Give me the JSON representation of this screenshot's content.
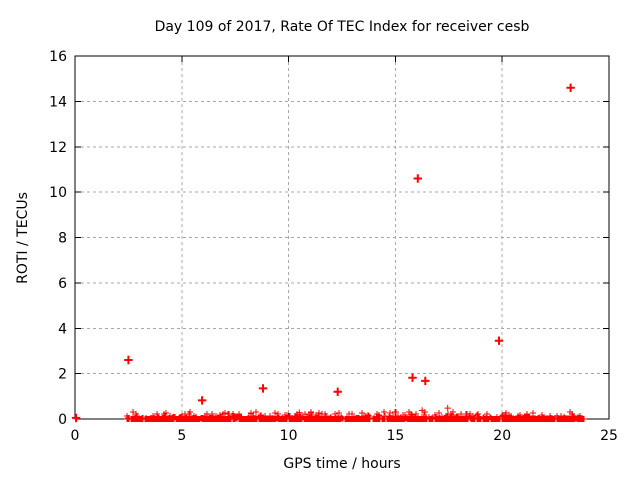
{
  "chart_data": {
    "type": "scatter",
    "title": "Day 109 of 2017, Rate Of TEC Index for receiver cesb",
    "xlabel": "GPS time / hours",
    "ylabel": "ROTI / TECUs",
    "xlim": [
      0,
      25
    ],
    "ylim": [
      0,
      16
    ],
    "xticks": [
      0,
      5,
      10,
      15,
      20,
      25
    ],
    "yticks": [
      0,
      2,
      4,
      6,
      8,
      10,
      12,
      14,
      16
    ],
    "grid": true,
    "legend": "none",
    "marker": "plus",
    "marker_color": "#ff0000",
    "grid_color": "#a8a8a8",
    "axis_color": "#000000",
    "outlier_points": [
      [
        0.05,
        0.05
      ],
      [
        2.5,
        2.6
      ],
      [
        5.95,
        0.82
      ],
      [
        8.8,
        1.35
      ],
      [
        12.3,
        1.2
      ],
      [
        15.8,
        1.82
      ],
      [
        16.05,
        10.6
      ],
      [
        16.4,
        1.68
      ],
      [
        19.85,
        3.45
      ],
      [
        23.2,
        14.6
      ]
    ],
    "minor_points": [
      [
        10.5,
        0.28
      ],
      [
        16.25,
        0.38
      ],
      [
        17.45,
        0.48
      ]
    ],
    "baseline_band": {
      "description": "dense cluster of ROTI values near 0 TECU for all observed epochs",
      "x_start": 2.42,
      "x_end": 23.85,
      "gap_x": [
        13.82,
        13.95
      ],
      "y_min": 0,
      "y_max": 0.3,
      "approx_point_count": 1600
    }
  }
}
